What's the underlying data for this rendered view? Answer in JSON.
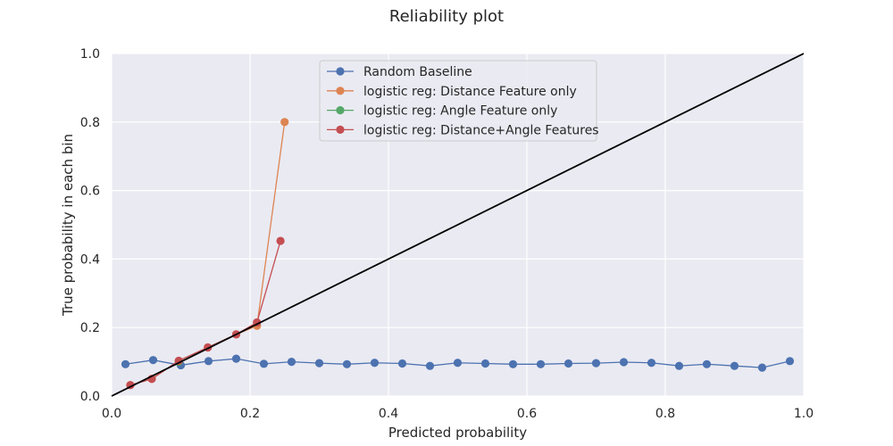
{
  "chart_data": {
    "type": "line",
    "title": "Reliability plot",
    "xlabel": "Predicted probability",
    "ylabel": "True probability in each bin",
    "xlim": [
      0.0,
      1.0
    ],
    "ylim": [
      0.0,
      1.0
    ],
    "xticks": [
      "0.0",
      "0.2",
      "0.4",
      "0.6",
      "0.8",
      "1.0"
    ],
    "yticks": [
      "0.0",
      "0.2",
      "0.4",
      "0.6",
      "0.8",
      "1.0"
    ],
    "grid": true,
    "legend_position": "top-center",
    "background": "#eaeaf2",
    "diagonal": {
      "x": [
        0,
        1
      ],
      "y": [
        0,
        1
      ],
      "color": "#000000"
    },
    "series": [
      {
        "name": "Random Baseline",
        "color": "#4c72b0",
        "x": [
          0.02,
          0.06,
          0.1,
          0.14,
          0.18,
          0.22,
          0.26,
          0.3,
          0.34,
          0.38,
          0.42,
          0.46,
          0.5,
          0.54,
          0.58,
          0.62,
          0.66,
          0.7,
          0.74,
          0.78,
          0.82,
          0.86,
          0.9,
          0.94,
          0.98
        ],
        "y": [
          0.093,
          0.105,
          0.09,
          0.102,
          0.109,
          0.094,
          0.1,
          0.096,
          0.093,
          0.097,
          0.095,
          0.088,
          0.097,
          0.095,
          0.093,
          0.093,
          0.095,
          0.096,
          0.099,
          0.097,
          0.088,
          0.093,
          0.088,
          0.083,
          0.102
        ]
      },
      {
        "name": "logistic reg: Distance Feature only",
        "color": "#dd8452",
        "x": [
          0.027,
          0.058,
          0.097,
          0.139,
          0.18,
          0.21,
          0.25
        ],
        "y": [
          0.032,
          0.05,
          0.103,
          0.142,
          0.18,
          0.205,
          0.8
        ]
      },
      {
        "name": "logistic reg: Angle Feature only",
        "color": "#55a868",
        "x": [
          0.097
        ],
        "y": [
          0.1
        ]
      },
      {
        "name": "logistic reg: Distance+Angle Features",
        "color": "#c44e52",
        "x": [
          0.027,
          0.058,
          0.097,
          0.139,
          0.18,
          0.21,
          0.244
        ],
        "y": [
          0.032,
          0.05,
          0.103,
          0.142,
          0.18,
          0.215,
          0.453
        ]
      }
    ]
  }
}
